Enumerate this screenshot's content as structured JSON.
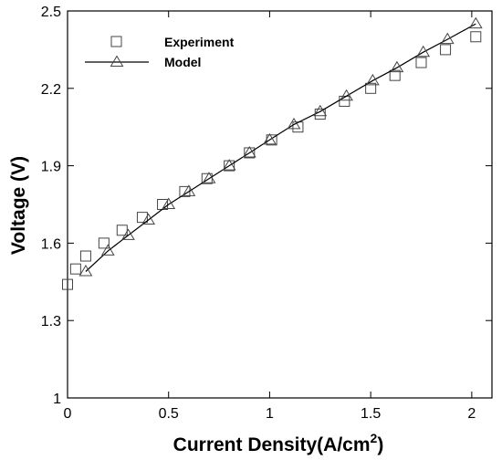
{
  "chart_data": {
    "type": "scatter",
    "xlabel": "Current Density(A/cm",
    "xlabel_sup": "2",
    "xlabel_end": ")",
    "ylabel": "Voltage (V)",
    "xlim": [
      0,
      2.1
    ],
    "ylim": [
      1,
      2.5
    ],
    "xticks": [
      0,
      0.5,
      1,
      1.5,
      2
    ],
    "xtick_labels": [
      "0",
      "0.5",
      "1",
      "1.5",
      "2"
    ],
    "yticks": [
      1,
      1.3,
      1.6,
      1.9,
      2.2,
      2.5
    ],
    "ytick_labels": [
      "1",
      "1.3",
      "1.6",
      "1.9",
      "2.2",
      "2.5"
    ],
    "grid": false,
    "legend_position": "top-left",
    "series": [
      {
        "name": "Experiment",
        "marker": "square",
        "line": false,
        "x": [
          0.0,
          0.04,
          0.09,
          0.18,
          0.27,
          0.37,
          0.47,
          0.58,
          0.69,
          0.8,
          0.9,
          1.01,
          1.14,
          1.25,
          1.37,
          1.5,
          1.62,
          1.75,
          1.87,
          2.02
        ],
        "y": [
          1.44,
          1.5,
          1.55,
          1.6,
          1.65,
          1.7,
          1.75,
          1.8,
          1.85,
          1.9,
          1.95,
          2.0,
          2.05,
          2.1,
          2.15,
          2.2,
          2.25,
          2.3,
          2.35,
          2.4
        ]
      },
      {
        "name": "Model",
        "marker": "triangle",
        "line": true,
        "color": "#000000",
        "x": [
          0.09,
          0.2,
          0.3,
          0.4,
          0.5,
          0.6,
          0.7,
          0.8,
          0.9,
          1.0,
          1.12,
          1.25,
          1.38,
          1.51,
          1.63,
          1.76,
          1.88,
          2.02
        ],
        "y": [
          1.49,
          1.57,
          1.63,
          1.69,
          1.75,
          1.8,
          1.85,
          1.9,
          1.95,
          2.0,
          2.06,
          2.11,
          2.17,
          2.23,
          2.28,
          2.34,
          2.39,
          2.45
        ]
      }
    ]
  }
}
